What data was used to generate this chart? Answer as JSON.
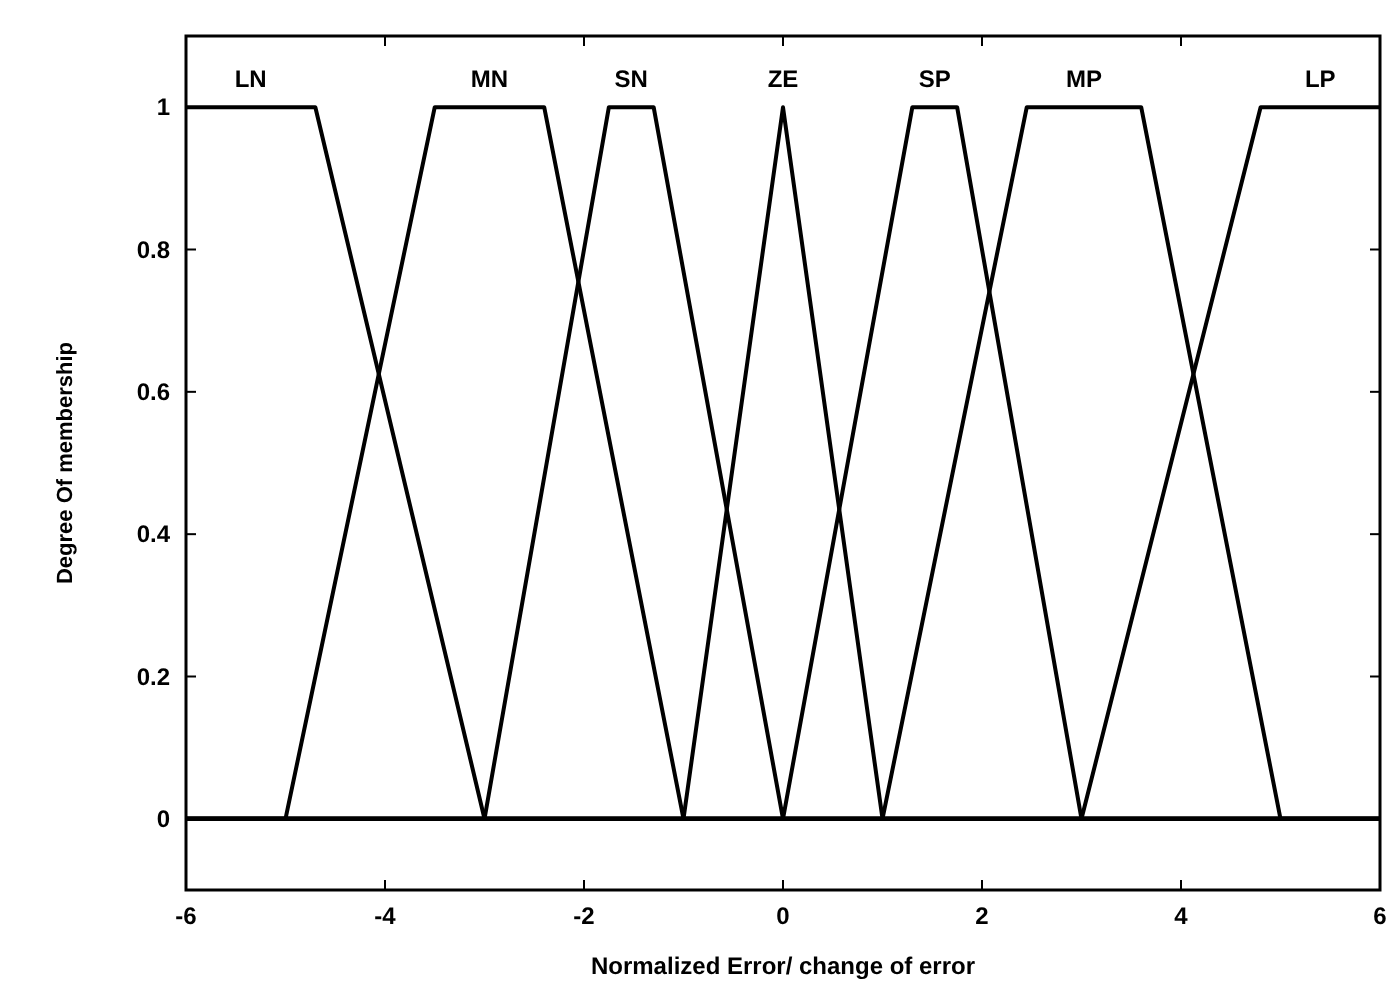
{
  "chart_data": {
    "type": "line",
    "xlabel": "Normalized Error/ change of error",
    "ylabel": "Degree Of membership",
    "xlim": [
      -6,
      6
    ],
    "ylim": [
      -0.1,
      1.1
    ],
    "xticks": [
      -6,
      -4,
      -2,
      0,
      2,
      4,
      6
    ],
    "yticks": [
      0,
      0.2,
      0.4,
      0.6,
      0.8,
      1
    ],
    "grid": false,
    "marker": "none",
    "line_style": "solid",
    "series": [
      {
        "name": "LN",
        "color": "#000000",
        "x": [
          -6,
          -4.7,
          -3,
          6
        ],
        "values": [
          1,
          1,
          0,
          0
        ]
      },
      {
        "name": "MN",
        "color": "#000000",
        "x": [
          -6,
          -5,
          -3.5,
          -2.4,
          -1,
          6
        ],
        "values": [
          0,
          0,
          1,
          1,
          0,
          0
        ]
      },
      {
        "name": "SN",
        "color": "#000000",
        "x": [
          -6,
          -3,
          -1.75,
          -1.3,
          0,
          6
        ],
        "values": [
          0,
          0,
          1,
          1,
          0,
          0
        ]
      },
      {
        "name": "ZE",
        "color": "#000000",
        "x": [
          -6,
          -1,
          0,
          1,
          6
        ],
        "values": [
          0,
          0,
          1,
          0,
          0
        ]
      },
      {
        "name": "SP",
        "color": "#000000",
        "x": [
          -6,
          0,
          1.3,
          1.75,
          3,
          6
        ],
        "values": [
          0,
          0,
          1,
          1,
          0,
          0
        ]
      },
      {
        "name": "MP",
        "color": "#000000",
        "x": [
          -6,
          1,
          2.45,
          3.6,
          5,
          6
        ],
        "values": [
          0,
          0,
          1,
          1,
          0,
          0
        ]
      },
      {
        "name": "LP",
        "color": "#000000",
        "x": [
          -6,
          3,
          4.8,
          6
        ],
        "values": [
          0,
          0,
          1,
          1
        ]
      }
    ]
  }
}
